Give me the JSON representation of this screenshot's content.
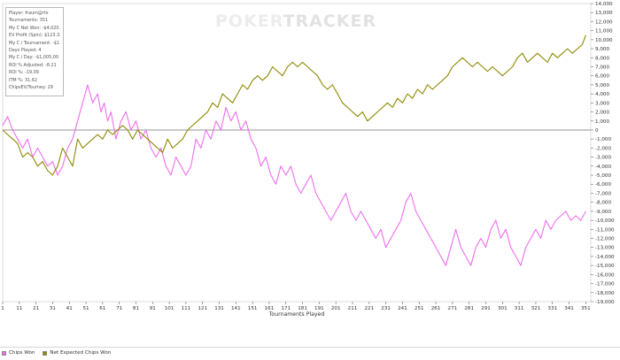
{
  "watermark": {
    "part1": "POKER",
    "part2": "TRACKER"
  },
  "stats": [
    "Player: fraum@rtx",
    "Tournaments: 351",
    "My C Net Won: -$4,020.00",
    "EV Profit (Spin): $123.33",
    "My C / Tournament: -$11.45",
    "Days Played: 4",
    "My C / Day: -$1,005.00",
    "ROI % Adjusted: -8.21",
    "ROI %: -19.09",
    "ITM %: 31.62",
    "ChipsEV/Tourney: 29"
  ],
  "legend": [
    {
      "label": "Chips Won",
      "color": "#ee6fee"
    },
    {
      "label": "Net Expected Chips Won",
      "color": "#8c8a00"
    }
  ],
  "chart_data": {
    "type": "line",
    "title": "",
    "xlabel": "Tournaments Played",
    "ylabel": "",
    "xlim": [
      1,
      354
    ],
    "ylim": [
      -19000,
      14000
    ],
    "x_ticks": [
      1,
      11,
      21,
      31,
      41,
      51,
      61,
      71,
      81,
      91,
      101,
      111,
      121,
      131,
      141,
      151,
      161,
      171,
      181,
      191,
      201,
      211,
      221,
      231,
      241,
      251,
      261,
      271,
      281,
      291,
      301,
      311,
      321,
      331,
      341,
      351
    ],
    "y_ticks": [
      14000,
      13000,
      12000,
      11000,
      10000,
      9000,
      8000,
      7000,
      6000,
      5000,
      4000,
      3000,
      2000,
      1000,
      0,
      -1000,
      -2000,
      -3000,
      -4000,
      -5000,
      -6000,
      -7000,
      -8000,
      -9000,
      -10000,
      -11000,
      -12000,
      -13000,
      -14000,
      -15000,
      -16000,
      -17000,
      -18000,
      -19000
    ],
    "y_tick_labels": [
      "14,000",
      "13,000",
      "12,000",
      "11,000",
      "10,000",
      "9,000",
      "8,000",
      "7,000",
      "6,000",
      "5,000",
      "4,000",
      "3,000",
      "2,000",
      "1,000",
      "0",
      "-1,000",
      "-2,000",
      "-3,000",
      "-4,000",
      "-5,000",
      "-6,000",
      "-7,000",
      "-8,000",
      "-9,000",
      "-10,000",
      "-11,000",
      "-12,000",
      "-13,000",
      "-14,000",
      "-15,000",
      "-16,000",
      "-17,000",
      "-18,000",
      "-19,000"
    ],
    "zero_line": true,
    "grid": false,
    "legend_position": "bottom-left",
    "series": [
      {
        "name": "Chips Won",
        "color": "#ee6fee",
        "x": [
          1,
          4,
          7,
          10,
          13,
          16,
          19,
          22,
          25,
          28,
          31,
          34,
          37,
          40,
          43,
          46,
          49,
          52,
          55,
          58,
          60,
          62,
          64,
          66,
          69,
          72,
          75,
          78,
          81,
          84,
          87,
          90,
          93,
          96,
          99,
          102,
          105,
          108,
          111,
          114,
          117,
          120,
          123,
          126,
          129,
          132,
          135,
          138,
          141,
          144,
          147,
          150,
          153,
          156,
          159,
          162,
          165,
          168,
          171,
          174,
          177,
          180,
          183,
          186,
          189,
          192,
          195,
          198,
          201,
          204,
          207,
          210,
          213,
          216,
          219,
          222,
          225,
          228,
          231,
          234,
          237,
          240,
          243,
          246,
          249,
          252,
          255,
          258,
          261,
          264,
          267,
          270,
          273,
          276,
          279,
          282,
          285,
          288,
          291,
          294,
          297,
          300,
          303,
          306,
          309,
          312,
          315,
          318,
          321,
          324,
          327,
          330,
          333,
          336,
          339,
          342,
          345,
          348,
          351
        ],
        "y": [
          500,
          1500,
          0,
          -1000,
          -2000,
          -1000,
          -3000,
          -2000,
          -3000,
          -4000,
          -3500,
          -5000,
          -4000,
          -2000,
          -1000,
          1000,
          3000,
          5000,
          3000,
          4000,
          2000,
          3000,
          1000,
          2000,
          -1000,
          1000,
          2000,
          0,
          1000,
          -1000,
          0,
          -2000,
          -3000,
          -2000,
          -4000,
          -5000,
          -3000,
          -4000,
          -5000,
          -4000,
          -1000,
          -2000,
          0,
          -1000,
          1000,
          0,
          2500,
          1000,
          2000,
          0,
          1000,
          -1000,
          -2000,
          -4000,
          -3000,
          -5000,
          -6000,
          -4000,
          -5000,
          -4000,
          -6000,
          -7000,
          -6000,
          -5000,
          -7000,
          -8000,
          -9000,
          -10000,
          -9000,
          -8000,
          -7000,
          -9000,
          -10000,
          -9000,
          -10000,
          -11000,
          -12000,
          -11000,
          -13000,
          -12000,
          -11000,
          -10000,
          -8000,
          -7000,
          -9000,
          -10000,
          -11000,
          -12000,
          -13000,
          -14000,
          -15000,
          -13000,
          -11000,
          -13000,
          -14000,
          -15000,
          -13000,
          -12000,
          -13000,
          -11000,
          -10000,
          -12000,
          -11000,
          -13000,
          -14000,
          -15000,
          -13000,
          -12000,
          -11000,
          -12000,
          -10000,
          -11000,
          -10000,
          -9500,
          -9000,
          -10000,
          -9500,
          -10000,
          -9000
        ]
      },
      {
        "name": "Net Expected Chips Won",
        "color": "#8c8a00",
        "x": [
          1,
          4,
          7,
          10,
          13,
          16,
          19,
          22,
          25,
          28,
          31,
          34,
          37,
          40,
          43,
          46,
          49,
          52,
          55,
          58,
          61,
          64,
          67,
          70,
          73,
          76,
          79,
          82,
          85,
          88,
          91,
          94,
          97,
          100,
          103,
          106,
          109,
          112,
          115,
          118,
          121,
          124,
          127,
          130,
          133,
          136,
          139,
          142,
          145,
          148,
          151,
          154,
          157,
          160,
          163,
          166,
          169,
          172,
          175,
          178,
          181,
          184,
          187,
          190,
          193,
          196,
          199,
          202,
          205,
          208,
          211,
          214,
          217,
          220,
          223,
          226,
          229,
          232,
          235,
          238,
          241,
          244,
          247,
          250,
          253,
          256,
          259,
          262,
          265,
          268,
          271,
          274,
          277,
          280,
          283,
          286,
          289,
          292,
          295,
          298,
          301,
          304,
          307,
          310,
          313,
          316,
          319,
          322,
          325,
          328,
          331,
          334,
          337,
          340,
          343,
          346,
          349,
          351
        ],
        "y": [
          0,
          -500,
          -1000,
          -1500,
          -3000,
          -2500,
          -3000,
          -4000,
          -3500,
          -4500,
          -5000,
          -4000,
          -2000,
          -3000,
          -4000,
          -1000,
          -2000,
          -1500,
          -1000,
          -500,
          -1000,
          0,
          -500,
          0,
          500,
          0,
          -1000,
          0,
          -500,
          -1000,
          -1500,
          -2000,
          -2500,
          -1000,
          -2000,
          -1500,
          -1000,
          0,
          500,
          1000,
          1500,
          2000,
          3000,
          2500,
          4000,
          3500,
          3000,
          4000,
          5000,
          4500,
          5500,
          6000,
          5500,
          6000,
          7000,
          6500,
          6000,
          7000,
          7500,
          7000,
          7500,
          7000,
          6500,
          6000,
          5000,
          4500,
          5000,
          4000,
          3000,
          2500,
          2000,
          1500,
          2000,
          1000,
          1500,
          2000,
          2500,
          3000,
          2500,
          3500,
          3000,
          4000,
          3500,
          4500,
          4000,
          5000,
          4500,
          5000,
          5500,
          6000,
          7000,
          7500,
          8000,
          7500,
          7000,
          7500,
          7000,
          6500,
          7000,
          6500,
          6000,
          6500,
          7000,
          8000,
          8500,
          7500,
          8000,
          8500,
          8000,
          7500,
          8500,
          8000,
          8500,
          9000,
          8500,
          9000,
          9500,
          10500
        ]
      }
    ]
  }
}
